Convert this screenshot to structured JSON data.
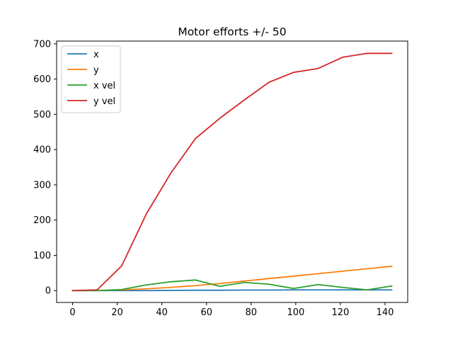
{
  "chart_data": {
    "type": "line",
    "title": "Motor efforts +/- 50",
    "xlabel": "",
    "ylabel": "",
    "xlim": [
      -7.15,
      150.15
    ],
    "ylim": [
      -33.7,
      707.8
    ],
    "xticks": [
      0,
      20,
      40,
      60,
      80,
      100,
      120,
      140
    ],
    "yticks": [
      0,
      100,
      200,
      300,
      400,
      500,
      600,
      700
    ],
    "grid": false,
    "legend_position": "upper-left",
    "x": [
      0,
      11,
      22,
      33,
      44,
      55,
      66,
      77,
      88,
      99,
      110,
      121,
      132,
      143
    ],
    "series": [
      {
        "name": "x",
        "color": "#1f77b4",
        "values": [
          0,
          0,
          0,
          0,
          0.5,
          1,
          1,
          1.5,
          1.5,
          2,
          2,
          2,
          2,
          2
        ]
      },
      {
        "name": "y",
        "color": "#ff7f0e",
        "values": [
          0,
          0.5,
          2,
          5,
          9,
          14,
          20,
          27,
          34,
          41,
          48,
          55,
          62,
          69
        ]
      },
      {
        "name": "x vel",
        "color": "#2ca02c",
        "values": [
          0,
          0,
          3,
          16,
          25,
          30,
          12,
          23,
          18,
          6,
          17,
          9,
          2,
          13
        ]
      },
      {
        "name": "y vel",
        "color": "#d62728",
        "values": [
          0,
          2,
          70,
          217,
          333,
          431,
          489,
          541,
          591,
          619,
          630,
          662,
          673,
          673
        ]
      }
    ]
  }
}
